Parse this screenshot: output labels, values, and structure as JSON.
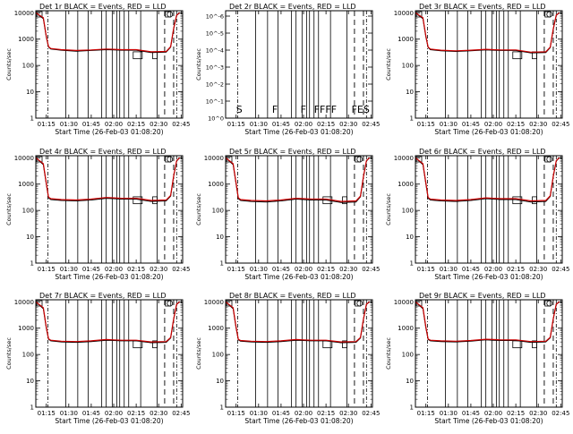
{
  "colors": {
    "events": "#000000",
    "lld": "#cc0000",
    "background": "#ffffff"
  },
  "common": {
    "xlabel": "Start Time (26-Feb-03 01:08:20)",
    "ylabel": "Counts/sec",
    "x_ticks": [
      "01:15",
      "01:30",
      "01:45",
      "02:00",
      "02:15",
      "02:30",
      "02:45"
    ],
    "x_tick_minutes": [
      15,
      30,
      45,
      60,
      75,
      90,
      105
    ],
    "x_range_minutes": [
      8,
      106
    ],
    "log_y_ticks": [
      "1",
      "10",
      "100",
      "1000",
      "10000"
    ],
    "log_y_tick_values": [
      1,
      10,
      100,
      1000,
      10000
    ],
    "log_y_range": [
      1,
      12000
    ],
    "vlines_solid_minutes": [
      28,
      36,
      43,
      52,
      55,
      59,
      62,
      64,
      67,
      70,
      78,
      89
    ],
    "vlines_dashdot_minutes": [
      16,
      102
    ],
    "vlines_dashed_minutes": [
      94,
      100
    ],
    "blocks_minutes": [
      [
        73,
        79
      ],
      [
        86,
        89
      ]
    ]
  },
  "chart_data": [
    {
      "type": "line",
      "title": "Det 1r BLACK = Events, RED = LLD",
      "scale": "log",
      "x_minutes": [
        8,
        13,
        15,
        16.5,
        18,
        25,
        35,
        45,
        55,
        60,
        65,
        75,
        85,
        95,
        98,
        100,
        102,
        104
      ],
      "series": [
        {
          "name": "Events",
          "values": [
            10000,
            6000,
            1200,
            500,
            420,
            380,
            350,
            370,
            400,
            390,
            380,
            380,
            310,
            320,
            500,
            2500,
            8000,
            10000
          ]
        },
        {
          "name": "LLD",
          "values": [
            10000,
            6500,
            1300,
            520,
            440,
            400,
            370,
            390,
            420,
            410,
            400,
            400,
            330,
            340,
            520,
            2600,
            8200,
            10000
          ]
        }
      ]
    },
    {
      "type": "line",
      "title": "Det 2r BLACK = Events, RED = LLD",
      "scale": "linear",
      "y_ticks": [
        "10^0",
        "10^-1",
        "10^-2",
        "10^-3",
        "10^-4",
        "10^-5",
        "10^-6"
      ],
      "flags": [
        {
          "label": "S",
          "minute": 15
        },
        {
          "label": "F",
          "minute": 39
        },
        {
          "label": "F",
          "minute": 58
        },
        {
          "label": "FFFF",
          "minute": 67
        },
        {
          "label": "FES",
          "minute": 92
        }
      ]
    },
    {
      "type": "line",
      "title": "Det 3r BLACK = Events, RED = LLD",
      "scale": "log",
      "x_minutes": [
        8,
        13,
        15,
        16.5,
        18,
        25,
        35,
        45,
        55,
        60,
        65,
        75,
        85,
        95,
        98,
        100,
        102,
        104
      ],
      "series": [
        {
          "name": "Events",
          "values": [
            10000,
            6000,
            1200,
            480,
            400,
            360,
            340,
            360,
            390,
            380,
            370,
            370,
            300,
            310,
            480,
            2400,
            8000,
            10000
          ]
        },
        {
          "name": "LLD",
          "values": [
            10000,
            6500,
            1300,
            500,
            420,
            380,
            360,
            380,
            410,
            400,
            390,
            390,
            320,
            330,
            500,
            2500,
            8200,
            10000
          ]
        }
      ]
    },
    {
      "type": "line",
      "title": "Det 4r BLACK = Events, RED = LLD",
      "scale": "log",
      "x_minutes": [
        8,
        13,
        15,
        16.5,
        18,
        25,
        35,
        45,
        55,
        60,
        65,
        75,
        85,
        95,
        98,
        100,
        102,
        104
      ],
      "series": [
        {
          "name": "Events",
          "values": [
            10000,
            5500,
            1000,
            300,
            260,
            240,
            230,
            250,
            290,
            280,
            270,
            270,
            220,
            230,
            350,
            2000,
            7500,
            10000
          ]
        },
        {
          "name": "LLD",
          "values": [
            10000,
            6000,
            1100,
            320,
            280,
            260,
            250,
            270,
            310,
            300,
            290,
            290,
            240,
            250,
            370,
            2100,
            7800,
            10000
          ]
        }
      ]
    },
    {
      "type": "line",
      "title": "Det 5r BLACK = Events, RED = LLD",
      "scale": "log",
      "x_minutes": [
        8,
        13,
        15,
        16.5,
        18,
        25,
        35,
        45,
        55,
        60,
        65,
        75,
        85,
        95,
        98,
        100,
        102,
        104
      ],
      "series": [
        {
          "name": "Events",
          "values": [
            10000,
            5500,
            1000,
            280,
            240,
            220,
            210,
            230,
            270,
            260,
            250,
            250,
            200,
            210,
            330,
            1900,
            7500,
            10000
          ]
        },
        {
          "name": "LLD",
          "values": [
            10000,
            6000,
            1100,
            300,
            260,
            240,
            230,
            250,
            290,
            280,
            270,
            270,
            220,
            230,
            350,
            2000,
            7800,
            10000
          ]
        }
      ]
    },
    {
      "type": "line",
      "title": "Det 6r BLACK = Events, RED = LLD",
      "scale": "log",
      "x_minutes": [
        8,
        13,
        15,
        16.5,
        18,
        25,
        35,
        45,
        55,
        60,
        65,
        75,
        85,
        95,
        98,
        100,
        102,
        104
      ],
      "series": [
        {
          "name": "Events",
          "values": [
            10000,
            5500,
            1000,
            290,
            250,
            230,
            220,
            240,
            280,
            270,
            260,
            260,
            210,
            220,
            340,
            1950,
            7500,
            10000
          ]
        },
        {
          "name": "LLD",
          "values": [
            10000,
            6000,
            1100,
            310,
            270,
            250,
            240,
            260,
            300,
            290,
            280,
            280,
            230,
            240,
            360,
            2050,
            7800,
            10000
          ]
        }
      ]
    },
    {
      "type": "line",
      "title": "Det 7r BLACK = Events, RED = LLD",
      "scale": "log",
      "x_minutes": [
        8,
        13,
        15,
        16.5,
        18,
        25,
        35,
        45,
        55,
        60,
        65,
        75,
        85,
        95,
        98,
        100,
        102,
        104
      ],
      "series": [
        {
          "name": "Events",
          "values": [
            10000,
            5500,
            1000,
            380,
            330,
            300,
            290,
            310,
            350,
            340,
            330,
            330,
            280,
            290,
            420,
            2200,
            8000,
            10000
          ]
        },
        {
          "name": "LLD",
          "values": [
            10000,
            6000,
            1100,
            400,
            350,
            320,
            310,
            330,
            370,
            360,
            350,
            350,
            300,
            310,
            440,
            2300,
            8200,
            10000
          ]
        }
      ]
    },
    {
      "type": "line",
      "title": "Det 8r BLACK = Events, RED = LLD",
      "scale": "log",
      "x_minutes": [
        8,
        13,
        15,
        16.5,
        18,
        25,
        35,
        45,
        55,
        60,
        65,
        75,
        85,
        95,
        98,
        100,
        102,
        104
      ],
      "series": [
        {
          "name": "Events",
          "values": [
            10000,
            5500,
            1000,
            360,
            320,
            300,
            290,
            310,
            350,
            340,
            330,
            330,
            280,
            290,
            420,
            2200,
            8000,
            10000
          ]
        },
        {
          "name": "LLD",
          "values": [
            10000,
            6000,
            1100,
            380,
            340,
            320,
            310,
            330,
            370,
            360,
            350,
            350,
            300,
            310,
            440,
            2300,
            8200,
            10000
          ]
        }
      ]
    },
    {
      "type": "line",
      "title": "Det 9r BLACK = Events, RED = LLD",
      "scale": "log",
      "x_minutes": [
        8,
        13,
        15,
        16.5,
        18,
        25,
        35,
        45,
        55,
        60,
        65,
        75,
        85,
        95,
        98,
        100,
        102,
        104
      ],
      "series": [
        {
          "name": "Events",
          "values": [
            10000,
            5500,
            1000,
            370,
            330,
            310,
            300,
            320,
            360,
            350,
            340,
            340,
            290,
            300,
            430,
            2250,
            8000,
            10000
          ]
        },
        {
          "name": "LLD",
          "values": [
            10000,
            6000,
            1100,
            390,
            350,
            330,
            320,
            340,
            380,
            370,
            360,
            360,
            310,
            320,
            450,
            2350,
            8200,
            10000
          ]
        }
      ]
    }
  ]
}
